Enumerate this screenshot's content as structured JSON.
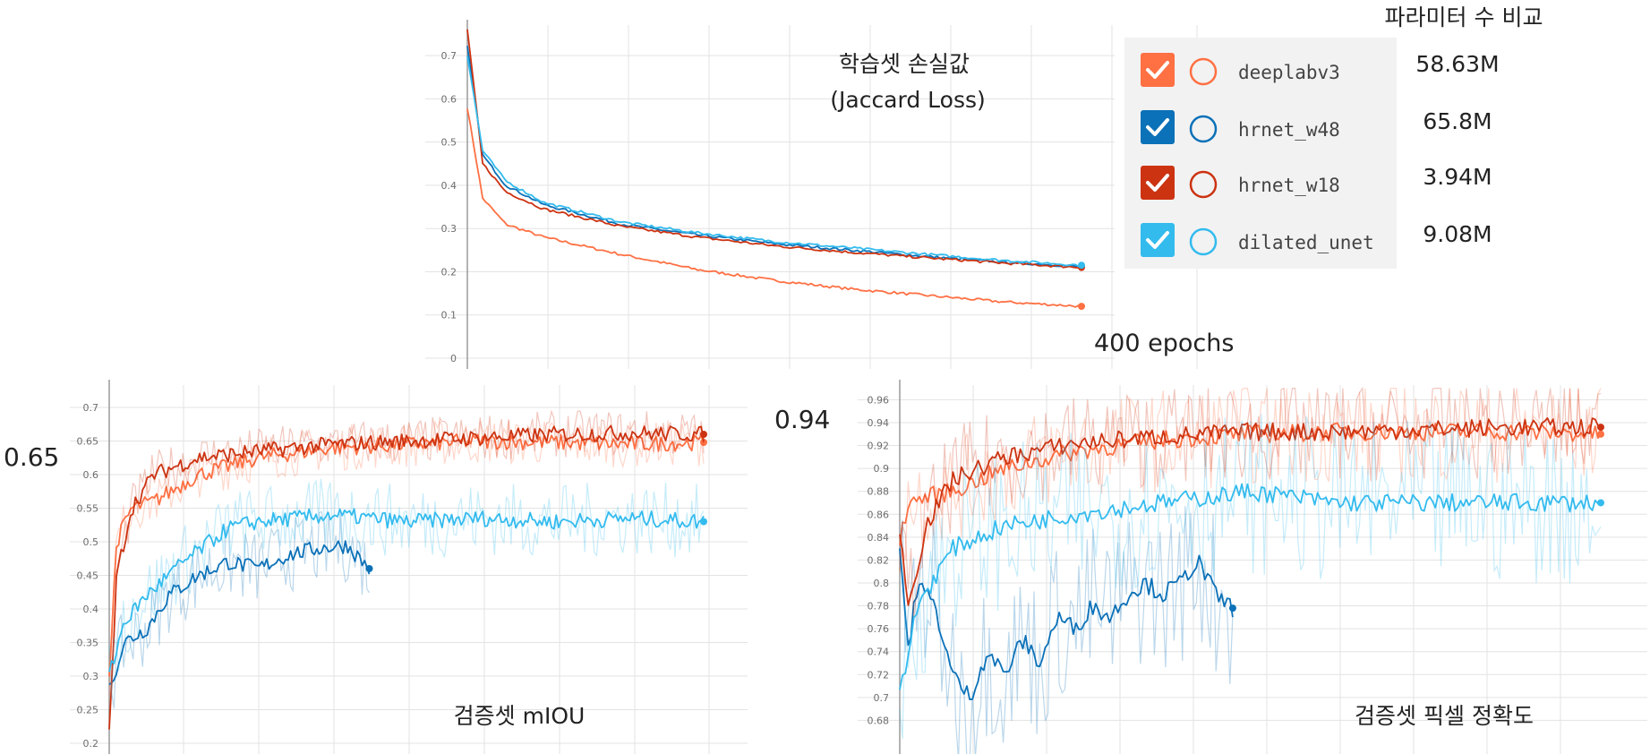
{
  "legend": {
    "header": "파라미터 수 비교",
    "items": [
      {
        "name": "deeplabv3",
        "params": "58.63M",
        "color": "#ff7043"
      },
      {
        "name": "hrnet_w48",
        "params": "65.8M",
        "color": "#0b71b8"
      },
      {
        "name": "hrnet_w18",
        "params": "3.94M",
        "color": "#cc3311"
      },
      {
        "name": "dilated_unet",
        "params": "9.08M",
        "color": "#33bbee"
      }
    ]
  },
  "chart_data": [
    {
      "type": "line",
      "title": "학습셋 손실값",
      "subtitle": "(Jaccard Loss)",
      "x_annotation": "400 epochs",
      "xlim": [
        0,
        400
      ],
      "ylim": [
        0,
        0.75
      ],
      "yticks": [
        "0",
        "0.1",
        "0.2",
        "0.3",
        "0.4",
        "0.5",
        "0.6",
        "0.7"
      ],
      "series": [
        {
          "name": "deeplabv3",
          "color": "#ff7043",
          "x": [
            0,
            10,
            25,
            50,
            100,
            150,
            200,
            250,
            300,
            350,
            400
          ],
          "y": [
            0.58,
            0.37,
            0.31,
            0.28,
            0.24,
            0.205,
            0.18,
            0.16,
            0.145,
            0.13,
            0.12
          ]
        },
        {
          "name": "hrnet_w48",
          "color": "#0b71b8",
          "x": [
            0,
            10,
            25,
            50,
            100,
            150,
            200,
            250,
            300,
            350,
            400
          ],
          "y": [
            0.72,
            0.47,
            0.4,
            0.355,
            0.31,
            0.285,
            0.265,
            0.25,
            0.235,
            0.222,
            0.212
          ]
        },
        {
          "name": "hrnet_w18",
          "color": "#cc3311",
          "x": [
            0,
            10,
            25,
            50,
            100,
            150,
            200,
            250,
            300,
            350,
            400
          ],
          "y": [
            0.76,
            0.45,
            0.385,
            0.345,
            0.305,
            0.28,
            0.26,
            0.245,
            0.232,
            0.22,
            0.21
          ]
        },
        {
          "name": "dilated_unet",
          "color": "#33bbee",
          "x": [
            0,
            10,
            25,
            50,
            100,
            150,
            200,
            250,
            300,
            350,
            400
          ],
          "y": [
            0.7,
            0.48,
            0.41,
            0.36,
            0.315,
            0.29,
            0.27,
            0.255,
            0.24,
            0.226,
            0.215
          ]
        }
      ]
    },
    {
      "type": "line",
      "title": "검증셋 mIOU",
      "y_annotation": "0.65",
      "xlim": [
        0,
        400
      ],
      "ylim": [
        0.2,
        0.72
      ],
      "yticks": [
        "0.2",
        "0.25",
        "0.3",
        "0.35",
        "0.4",
        "0.45",
        "0.5",
        "0.55",
        "0.6",
        "0.65",
        "0.7"
      ],
      "series": [
        {
          "name": "deeplabv3",
          "color": "#ff7043",
          "x": [
            0,
            5,
            15,
            30,
            60,
            100,
            150,
            200,
            250,
            300,
            350,
            400
          ],
          "y": [
            0.3,
            0.5,
            0.55,
            0.56,
            0.6,
            0.625,
            0.64,
            0.645,
            0.65,
            0.648,
            0.645,
            0.648
          ]
        },
        {
          "name": "hrnet_w48",
          "color": "#0b71b8",
          "x": [
            0,
            10,
            25,
            40,
            60,
            80,
            100,
            120,
            140,
            160,
            175
          ],
          "y": [
            0.28,
            0.35,
            0.37,
            0.42,
            0.45,
            0.47,
            0.46,
            0.48,
            0.49,
            0.495,
            0.46
          ]
        },
        {
          "name": "hrnet_w18",
          "color": "#cc3311",
          "x": [
            0,
            5,
            15,
            30,
            60,
            100,
            150,
            200,
            250,
            300,
            350,
            400
          ],
          "y": [
            0.21,
            0.45,
            0.55,
            0.6,
            0.625,
            0.635,
            0.645,
            0.65,
            0.655,
            0.66,
            0.662,
            0.66
          ]
        },
        {
          "name": "dilated_unet",
          "color": "#33bbee",
          "x": [
            0,
            10,
            25,
            50,
            80,
            100,
            150,
            200,
            250,
            300,
            350,
            400
          ],
          "y": [
            0.3,
            0.38,
            0.42,
            0.47,
            0.52,
            0.53,
            0.54,
            0.53,
            0.535,
            0.53,
            0.535,
            0.53
          ]
        }
      ]
    },
    {
      "type": "line",
      "title": "검증셋 픽셀 정확도",
      "y_annotation": "0.94",
      "xlim": [
        0,
        400
      ],
      "ylim": [
        0.66,
        0.965
      ],
      "yticks": [
        "0.68",
        "0.7",
        "0.72",
        "0.74",
        "0.76",
        "0.78",
        "0.8",
        "0.82",
        "0.84",
        "0.86",
        "0.88",
        "0.9",
        "0.92",
        "0.94",
        "0.96"
      ],
      "series": [
        {
          "name": "deeplabv3",
          "color": "#ff7043",
          "x": [
            0,
            5,
            15,
            30,
            60,
            100,
            150,
            200,
            250,
            300,
            350,
            400
          ],
          "y": [
            0.84,
            0.87,
            0.875,
            0.88,
            0.9,
            0.915,
            0.925,
            0.93,
            0.932,
            0.932,
            0.932,
            0.93
          ]
        },
        {
          "name": "hrnet_w48",
          "color": "#0b71b8",
          "x": [
            0,
            5,
            10,
            20,
            30,
            40,
            50,
            60,
            70,
            80,
            90,
            100,
            110,
            120,
            130,
            140,
            150,
            160,
            170,
            180,
            190
          ],
          "y": [
            0.83,
            0.74,
            0.8,
            0.78,
            0.72,
            0.7,
            0.74,
            0.72,
            0.75,
            0.73,
            0.77,
            0.76,
            0.78,
            0.77,
            0.79,
            0.8,
            0.79,
            0.8,
            0.82,
            0.79,
            0.778
          ]
        },
        {
          "name": "hrnet_w18",
          "color": "#cc3311",
          "x": [
            0,
            5,
            15,
            30,
            60,
            100,
            150,
            200,
            250,
            300,
            350,
            400
          ],
          "y": [
            0.85,
            0.78,
            0.85,
            0.89,
            0.91,
            0.922,
            0.928,
            0.932,
            0.932,
            0.934,
            0.936,
            0.936
          ]
        },
        {
          "name": "dilated_unet",
          "color": "#33bbee",
          "x": [
            0,
            10,
            30,
            60,
            100,
            150,
            200,
            250,
            300,
            350,
            400
          ],
          "y": [
            0.7,
            0.78,
            0.83,
            0.85,
            0.86,
            0.87,
            0.88,
            0.87,
            0.87,
            0.87,
            0.87
          ]
        }
      ]
    }
  ]
}
